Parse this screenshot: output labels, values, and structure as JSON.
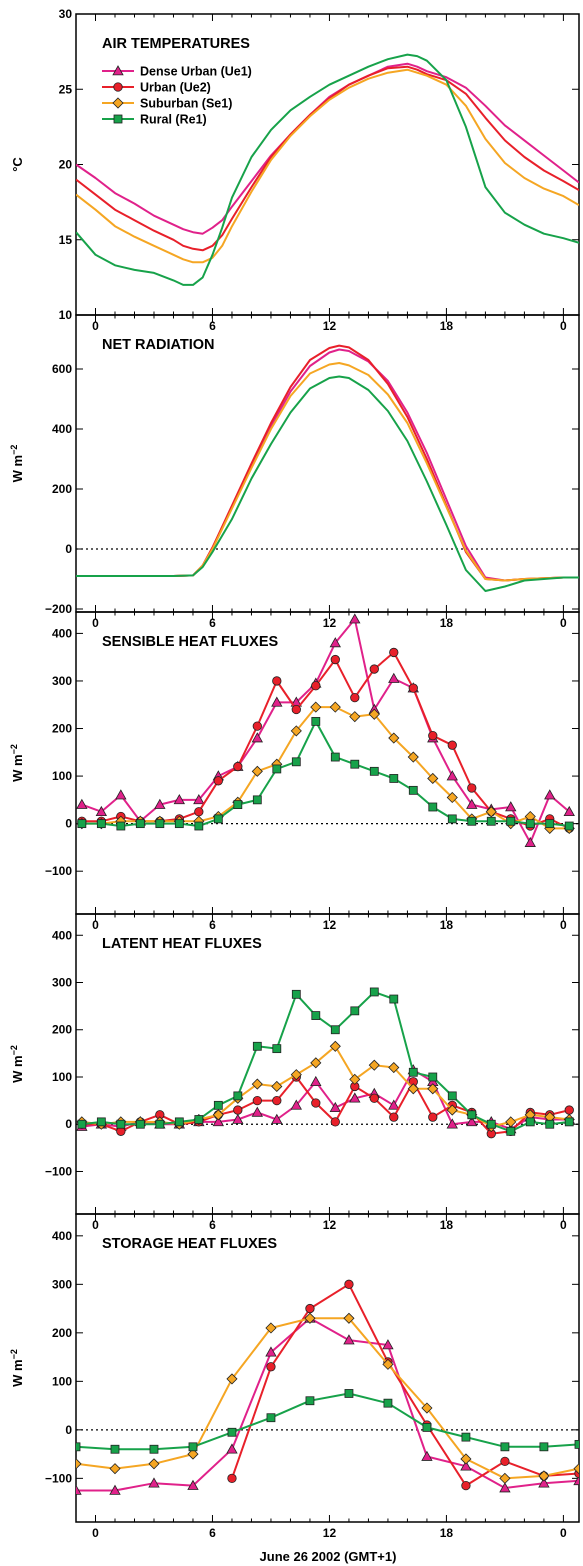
{
  "figure": {
    "xlabel": "June 26 2002 (GMT+1)",
    "x_tick_labels": [
      "0",
      "6",
      "12",
      "18",
      "0"
    ]
  },
  "legend": [
    {
      "name": "Dense Urban (Ue1)",
      "color": "#e0218a",
      "marker": "triangle"
    },
    {
      "name": "Urban (Ue2)",
      "color": "#e8202a",
      "marker": "circle"
    },
    {
      "name": "Suburban (Se1)",
      "color": "#f5a623",
      "marker": "diamond"
    },
    {
      "name": "Rural (Re1)",
      "color": "#17a24a",
      "marker": "square"
    }
  ],
  "chart_data": [
    {
      "type": "line",
      "title": "AIR TEMPERATURES",
      "ylabel": "°C",
      "xlim": [
        -1,
        24.8
      ],
      "ylim": [
        10,
        30
      ],
      "yticks": [
        10,
        15,
        20,
        25,
        30
      ],
      "x": [
        -1,
        0,
        1,
        2,
        3,
        4,
        4.5,
        5,
        5.5,
        6,
        6.5,
        7,
        8,
        9,
        10,
        11,
        12,
        13,
        14,
        15,
        16,
        16.5,
        17,
        18,
        19,
        20,
        21,
        22,
        23,
        24,
        24.8
      ],
      "series": [
        {
          "name": "Dense Urban (Ue1)",
          "values": [
            20.0,
            19.1,
            18.1,
            17.4,
            16.6,
            16.0,
            15.7,
            15.5,
            15.4,
            15.8,
            16.3,
            17.2,
            18.9,
            20.6,
            22.0,
            23.3,
            24.5,
            25.3,
            25.9,
            26.5,
            26.7,
            26.5,
            26.2,
            25.8,
            25.1,
            23.9,
            22.6,
            21.6,
            20.6,
            19.6,
            18.8
          ]
        },
        {
          "name": "Urban (Ue2)",
          "values": [
            19.0,
            18.0,
            17.0,
            16.3,
            15.6,
            15.0,
            14.6,
            14.4,
            14.3,
            14.6,
            15.3,
            16.4,
            18.5,
            20.5,
            22.0,
            23.3,
            24.4,
            25.3,
            25.9,
            26.4,
            26.5,
            26.3,
            26.0,
            25.6,
            24.7,
            23.1,
            21.6,
            20.5,
            19.6,
            18.9,
            18.3
          ]
        },
        {
          "name": "Suburban (Se1)",
          "values": [
            18.0,
            17.0,
            15.9,
            15.2,
            14.6,
            14.0,
            13.7,
            13.5,
            13.5,
            13.8,
            14.6,
            15.9,
            18.2,
            20.3,
            21.9,
            23.2,
            24.3,
            25.1,
            25.7,
            26.1,
            26.3,
            26.1,
            25.9,
            25.3,
            23.9,
            21.7,
            20.1,
            19.1,
            18.4,
            17.9,
            17.3
          ]
        },
        {
          "name": "Rural (Re1)",
          "values": [
            15.5,
            14.0,
            13.3,
            13.0,
            12.8,
            12.3,
            12.0,
            12.0,
            12.5,
            14.0,
            15.8,
            17.8,
            20.5,
            22.3,
            23.6,
            24.5,
            25.3,
            25.9,
            26.5,
            27.0,
            27.3,
            27.2,
            26.9,
            25.6,
            22.5,
            18.5,
            16.8,
            16.0,
            15.4,
            15.1,
            14.8
          ]
        }
      ]
    },
    {
      "type": "line",
      "title": "NET RADIATION",
      "ylabel": "W m−2",
      "xlim": [
        -1,
        24.8
      ],
      "ylim": [
        -210,
        780
      ],
      "yticks": [
        -200,
        0,
        200,
        400,
        600
      ],
      "ytick_labels": [
        "−200",
        "0",
        "200",
        "400",
        "600"
      ],
      "x": [
        -1,
        0,
        2,
        4,
        5,
        5.5,
        6,
        7,
        8,
        9,
        10,
        11,
        12,
        12.5,
        13,
        14,
        15,
        16,
        17,
        18,
        19,
        20,
        21,
        22,
        24,
        24.8
      ],
      "series": [
        {
          "name": "Dense Urban (Ue1)",
          "values": [
            -90,
            -90,
            -90,
            -90,
            -88,
            -55,
            5,
            140,
            275,
            410,
            525,
            610,
            655,
            665,
            660,
            625,
            560,
            455,
            320,
            165,
            10,
            -95,
            -105,
            -100,
            -95,
            -95
          ]
        },
        {
          "name": "Urban (Ue2)",
          "values": [
            -90,
            -90,
            -90,
            -90,
            -88,
            -55,
            5,
            145,
            285,
            420,
            540,
            630,
            670,
            678,
            672,
            630,
            550,
            440,
            300,
            145,
            -10,
            -100,
            -105,
            -100,
            -95,
            -95
          ]
        },
        {
          "name": "Suburban (Se1)",
          "values": [
            -90,
            -90,
            -90,
            -90,
            -88,
            -55,
            0,
            135,
            270,
            400,
            510,
            585,
            615,
            620,
            612,
            580,
            515,
            420,
            285,
            140,
            -5,
            -100,
            -105,
            -100,
            -95,
            -95
          ]
        },
        {
          "name": "Rural (Re1)",
          "values": [
            -90,
            -90,
            -90,
            -90,
            -88,
            -60,
            -10,
            100,
            235,
            350,
            455,
            535,
            570,
            575,
            570,
            530,
            460,
            360,
            225,
            80,
            -70,
            -140,
            -125,
            -105,
            -95,
            -95
          ]
        }
      ]
    },
    {
      "type": "line",
      "title": "SENSIBLE HEAT FLUXES",
      "ylabel": "W m−2",
      "xlim": [
        -1,
        24.8
      ],
      "ylim": [
        -190,
        445
      ],
      "yticks": [
        -100,
        0,
        100,
        200,
        300,
        400
      ],
      "ytick_labels": [
        "−100",
        "0",
        "100",
        "200",
        "300",
        "400"
      ],
      "x": [
        -0.7,
        0.3,
        1.3,
        2.3,
        3.3,
        4.3,
        5.3,
        6.3,
        7.3,
        8.3,
        9.3,
        10.3,
        11.3,
        12.3,
        13.3,
        14.3,
        15.3,
        16.3,
        17.3,
        18.3,
        19.3,
        20.3,
        21.3,
        22.3,
        23.3,
        24.3
      ],
      "series": [
        {
          "name": "Dense Urban (Ue1)",
          "values": [
            40,
            25,
            60,
            5,
            40,
            50,
            50,
            100,
            120,
            180,
            255,
            255,
            295,
            380,
            430,
            240,
            305,
            285,
            180,
            100,
            40,
            30,
            35,
            -40,
            60,
            25
          ]
        },
        {
          "name": "Urban (Ue2)",
          "values": [
            5,
            5,
            15,
            5,
            5,
            10,
            25,
            90,
            120,
            205,
            300,
            240,
            290,
            345,
            265,
            325,
            360,
            285,
            185,
            165,
            75,
            25,
            10,
            -5,
            10,
            -10
          ]
        },
        {
          "name": "Suburban (Se1)",
          "values": [
            0,
            0,
            5,
            5,
            5,
            5,
            5,
            15,
            45,
            110,
            125,
            195,
            245,
            245,
            225,
            230,
            180,
            140,
            95,
            55,
            10,
            25,
            0,
            15,
            -10,
            -10
          ]
        },
        {
          "name": "Rural (Re1)",
          "values": [
            0,
            0,
            -5,
            0,
            0,
            0,
            -5,
            10,
            40,
            50,
            115,
            130,
            215,
            140,
            125,
            110,
            95,
            70,
            35,
            10,
            5,
            5,
            5,
            0,
            0,
            -5
          ]
        }
      ]
    },
    {
      "type": "line",
      "title": "LATENT HEAT FLUXES",
      "ylabel": "W m−2",
      "xlim": [
        -1,
        24.8
      ],
      "ylim": [
        -190,
        445
      ],
      "yticks": [
        -100,
        0,
        100,
        200,
        300,
        400
      ],
      "ytick_labels": [
        "−100",
        "0",
        "100",
        "200",
        "300",
        "400"
      ],
      "x": [
        -0.7,
        0.3,
        1.3,
        2.3,
        3.3,
        4.3,
        5.3,
        6.3,
        7.3,
        8.3,
        9.3,
        10.3,
        11.3,
        12.3,
        13.3,
        14.3,
        15.3,
        16.3,
        17.3,
        18.3,
        19.3,
        20.3,
        21.3,
        22.3,
        23.3,
        24.3
      ],
      "series": [
        {
          "name": "Dense Urban (Ue1)",
          "values": [
            -5,
            0,
            -5,
            5,
            0,
            0,
            5,
            5,
            10,
            25,
            10,
            40,
            90,
            35,
            55,
            65,
            40,
            115,
            90,
            0,
            5,
            5,
            -10,
            15,
            10,
            10
          ]
        },
        {
          "name": "Urban (Ue2)",
          "values": [
            0,
            0,
            -15,
            5,
            20,
            0,
            5,
            20,
            30,
            50,
            50,
            100,
            45,
            5,
            80,
            55,
            15,
            90,
            15,
            40,
            25,
            -20,
            -15,
            25,
            20,
            30
          ]
        },
        {
          "name": "Suburban (Se1)",
          "values": [
            5,
            0,
            5,
            5,
            5,
            0,
            10,
            20,
            55,
            85,
            80,
            105,
            130,
            165,
            95,
            125,
            120,
            75,
            75,
            30,
            20,
            -5,
            5,
            20,
            15,
            10
          ]
        },
        {
          "name": "Rural (Re1)",
          "values": [
            0,
            5,
            0,
            0,
            0,
            5,
            10,
            40,
            60,
            165,
            160,
            275,
            230,
            200,
            240,
            280,
            265,
            110,
            100,
            60,
            20,
            0,
            -15,
            5,
            0,
            5
          ]
        }
      ]
    },
    {
      "type": "line",
      "title": "STORAGE HEAT FLUXES",
      "ylabel": "W m−2",
      "xlabel": "June 26 2002 (GMT+1)",
      "xlim": [
        -1,
        24.8
      ],
      "ylim": [
        -190,
        445
      ],
      "yticks": [
        -100,
        0,
        100,
        200,
        300,
        400
      ],
      "ytick_labels": [
        "−100",
        "0",
        "100",
        "200",
        "300",
        "400"
      ],
      "series": [
        {
          "name": "Dense Urban (Ue1)",
          "x": [
            -1,
            1,
            3,
            5,
            7,
            9,
            11,
            13,
            15,
            17,
            19,
            21,
            23,
            24.8
          ],
          "values": [
            -125,
            -125,
            -110,
            -115,
            -40,
            160,
            230,
            185,
            175,
            -55,
            -75,
            -120,
            -110,
            -105
          ]
        },
        {
          "name": "Urban (Ue2)",
          "x": [
            7,
            9,
            11,
            13,
            15,
            17,
            19,
            21,
            23,
            24.8
          ],
          "values": [
            -100,
            130,
            250,
            300,
            140,
            10,
            -115,
            -65,
            -95,
            -90
          ]
        },
        {
          "name": "Suburban (Se1)",
          "x": [
            -1,
            1,
            3,
            5,
            7,
            9,
            11,
            13,
            15,
            17,
            19,
            21,
            23,
            24.8
          ],
          "values": [
            -70,
            -80,
            -70,
            -50,
            105,
            210,
            230,
            230,
            135,
            45,
            -60,
            -100,
            -95,
            -80
          ]
        },
        {
          "name": "Rural (Re1)",
          "x": [
            -1,
            1,
            3,
            5,
            7,
            9,
            11,
            13,
            15,
            17,
            19,
            21,
            23,
            24.8
          ],
          "values": [
            -35,
            -40,
            -40,
            -35,
            -5,
            25,
            60,
            75,
            55,
            5,
            -15,
            -35,
            -35,
            -30
          ]
        }
      ]
    }
  ]
}
